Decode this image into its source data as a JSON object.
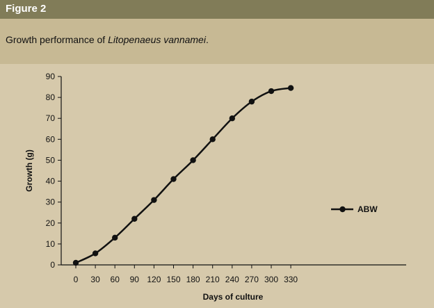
{
  "figure": {
    "label": "Figure 2",
    "caption_prefix": "Growth performance of ",
    "caption_species": "Litopenaeus vannamei",
    "caption_suffix": "."
  },
  "colors": {
    "header_bar": "#817c58",
    "caption_band": "#c7b994",
    "background": "#d6c9ab",
    "series_line": "#111111"
  },
  "chart_data": {
    "type": "line",
    "title": "",
    "xlabel": "Days of culture",
    "ylabel": "Growth (g)",
    "x": [
      0,
      30,
      60,
      90,
      120,
      150,
      180,
      210,
      240,
      270,
      300,
      330
    ],
    "xticks": [
      "0",
      "30",
      "60",
      "90",
      "120",
      "150",
      "180",
      "210",
      "240",
      "270",
      "300",
      "330"
    ],
    "yticks": [
      "0",
      "10",
      "20",
      "30",
      "40",
      "50",
      "60",
      "70",
      "80",
      "90"
    ],
    "ylim": [
      0,
      90
    ],
    "grid": false,
    "legend_position": "right",
    "series": [
      {
        "name": "ABW",
        "values": [
          1,
          5.5,
          13,
          22,
          31,
          41,
          50,
          60,
          70,
          78,
          83,
          84.5
        ],
        "marker": "circle",
        "smooth": true
      }
    ]
  }
}
